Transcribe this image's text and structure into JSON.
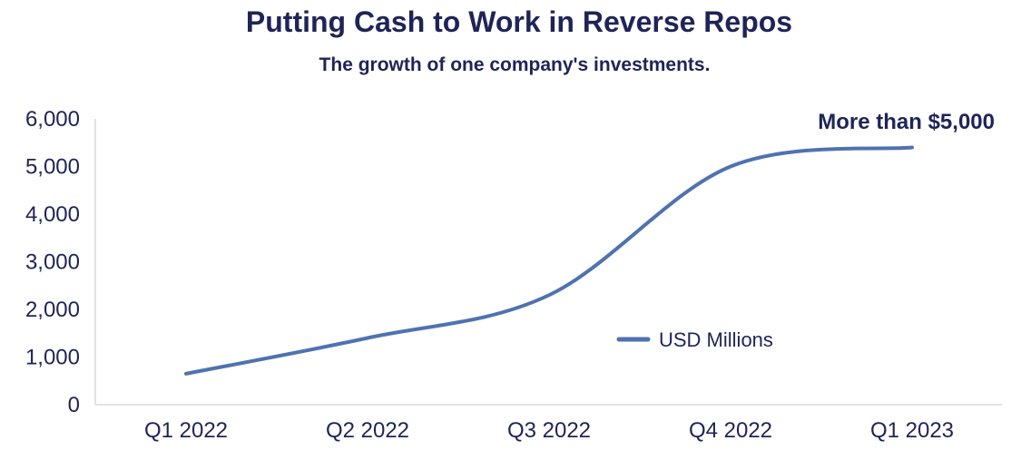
{
  "chart_data": {
    "type": "line",
    "title": "Putting Cash to Work in Reverse Repos",
    "subtitle": "The growth of one company's investments.",
    "xlabel": "",
    "ylabel": "",
    "categories": [
      "Q1 2022",
      "Q2 2022",
      "Q3 2022",
      "Q4 2022",
      "Q1 2023"
    ],
    "series": [
      {
        "name": "USD Millions",
        "values": [
          650,
          1400,
          2300,
          5000,
          5400
        ],
        "color": "#4f72b0"
      }
    ],
    "ylim": [
      0,
      6000
    ],
    "yticks": [
      0,
      1000,
      2000,
      3000,
      4000,
      5000,
      6000
    ],
    "ytick_labels": [
      "0",
      "1,000",
      "2,000",
      "3,000",
      "4,000",
      "5,000",
      "6,000"
    ],
    "annotation": "More than $5,000",
    "legend_position": "center-right",
    "grid": false,
    "axis_color": "#d9d9d9",
    "text_color": "#1f2457"
  }
}
